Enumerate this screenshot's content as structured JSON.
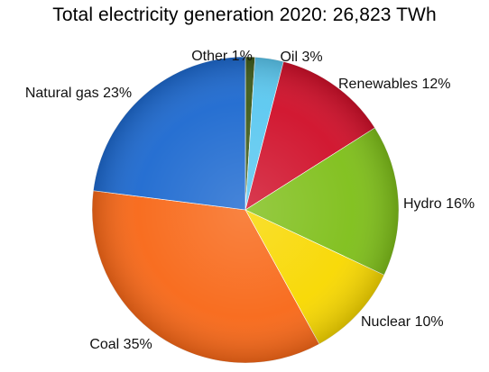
{
  "chart_data": {
    "type": "pie",
    "title": "Total electricity generation 2020: 26,823 TWh",
    "slices": [
      {
        "label": "Other 1%",
        "category": "Other",
        "value": 1,
        "color": "#3d5a1a"
      },
      {
        "label": "Oil 3%",
        "category": "Oil",
        "value": 3,
        "color": "#5bc8f0"
      },
      {
        "label": "Renewables  12%",
        "category": "Renewables",
        "value": 12,
        "color": "#d0102a"
      },
      {
        "label": "Hydro 16%",
        "category": "Hydro",
        "value": 16,
        "color": "#7fbf1a"
      },
      {
        "label": "Nuclear 10%",
        "category": "Nuclear",
        "value": 10,
        "color": "#f8d800"
      },
      {
        "label": "Coal 35%",
        "category": "Coal",
        "value": 35,
        "color": "#f86818"
      },
      {
        "label": "Natural gas 23%",
        "category": "Natural gas",
        "value": 23,
        "color": "#1e6ad0"
      }
    ],
    "start": "12 o'clock",
    "direction": "clockwise",
    "legend": "none"
  }
}
